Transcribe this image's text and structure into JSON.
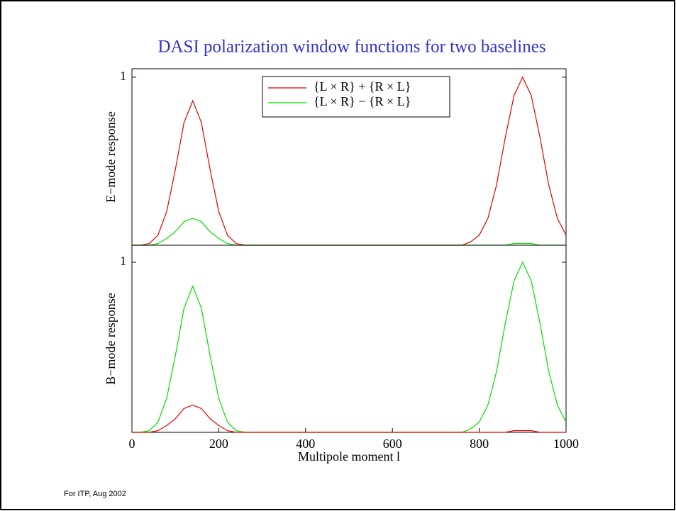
{
  "title": "DASI polarization window functions for two baselines",
  "footer": "For ITP, Aug 2002",
  "chart_data": [
    {
      "type": "line",
      "ylabel": "E−mode response",
      "x": [
        0,
        20,
        40,
        60,
        80,
        100,
        120,
        140,
        160,
        180,
        200,
        220,
        240,
        260,
        280,
        300,
        320,
        340,
        360,
        380,
        400,
        420,
        440,
        460,
        480,
        500,
        520,
        540,
        560,
        580,
        600,
        620,
        640,
        660,
        680,
        700,
        720,
        740,
        760,
        780,
        800,
        820,
        840,
        860,
        880,
        900,
        920,
        940,
        960,
        980,
        1000
      ],
      "xlim": [
        0,
        1000
      ],
      "ylim": [
        0,
        1.05
      ],
      "yticks": [
        1
      ],
      "legend": "top",
      "series": [
        {
          "name": "{L × R} + {R × L}",
          "color": "#e00000",
          "values": [
            0,
            0,
            0.01,
            0.06,
            0.2,
            0.45,
            0.73,
            0.86,
            0.73,
            0.45,
            0.2,
            0.06,
            0.01,
            0,
            0,
            0,
            0,
            0,
            0,
            0,
            0,
            0,
            0,
            0,
            0,
            0,
            0,
            0,
            0,
            0,
            0,
            0,
            0,
            0,
            0,
            0,
            0,
            0,
            0,
            0.02,
            0.06,
            0.16,
            0.36,
            0.64,
            0.89,
            1,
            0.89,
            0.64,
            0.36,
            0.16,
            0.06
          ]
        },
        {
          "name": "{L × R} − {R × L}",
          "color": "#00e000",
          "values": [
            0,
            0,
            0,
            0.01,
            0.04,
            0.08,
            0.14,
            0.16,
            0.14,
            0.08,
            0.04,
            0.01,
            0,
            0,
            0,
            0,
            0,
            0,
            0,
            0,
            0,
            0,
            0,
            0,
            0,
            0,
            0,
            0,
            0,
            0,
            0,
            0,
            0,
            0,
            0,
            0,
            0,
            0,
            0,
            0,
            0,
            0,
            0,
            0,
            0.01,
            0.01,
            0.01,
            0,
            0,
            0,
            0
          ]
        }
      ]
    },
    {
      "type": "line",
      "ylabel": "B−mode response",
      "xlabel": "Multipole moment l",
      "x": [
        0,
        20,
        40,
        60,
        80,
        100,
        120,
        140,
        160,
        180,
        200,
        220,
        240,
        260,
        280,
        300,
        320,
        340,
        360,
        380,
        400,
        420,
        440,
        460,
        480,
        500,
        520,
        540,
        560,
        580,
        600,
        620,
        640,
        660,
        680,
        700,
        720,
        740,
        760,
        780,
        800,
        820,
        840,
        860,
        880,
        900,
        920,
        940,
        960,
        980,
        1000
      ],
      "xlim": [
        0,
        1000
      ],
      "xticks": [
        0,
        200,
        400,
        600,
        800,
        1000
      ],
      "ylim": [
        0,
        1.1
      ],
      "yticks": [
        1
      ],
      "series": [
        {
          "color": "#00e000",
          "values": [
            0,
            0,
            0.01,
            0.06,
            0.2,
            0.45,
            0.73,
            0.86,
            0.73,
            0.45,
            0.2,
            0.06,
            0.01,
            0,
            0,
            0,
            0,
            0,
            0,
            0,
            0,
            0,
            0,
            0,
            0,
            0,
            0,
            0,
            0,
            0,
            0,
            0,
            0,
            0,
            0,
            0,
            0,
            0,
            0,
            0.02,
            0.06,
            0.16,
            0.36,
            0.64,
            0.89,
            1,
            0.89,
            0.64,
            0.36,
            0.16,
            0.06
          ]
        },
        {
          "color": "#e00000",
          "values": [
            0,
            0,
            0,
            0.01,
            0.04,
            0.08,
            0.14,
            0.16,
            0.14,
            0.08,
            0.04,
            0.01,
            0,
            0,
            0,
            0,
            0,
            0,
            0,
            0,
            0,
            0,
            0,
            0,
            0,
            0,
            0,
            0,
            0,
            0,
            0,
            0,
            0,
            0,
            0,
            0,
            0,
            0,
            0,
            0,
            0,
            0,
            0,
            0,
            0.01,
            0.01,
            0.01,
            0,
            0,
            0,
            0
          ]
        }
      ]
    }
  ]
}
